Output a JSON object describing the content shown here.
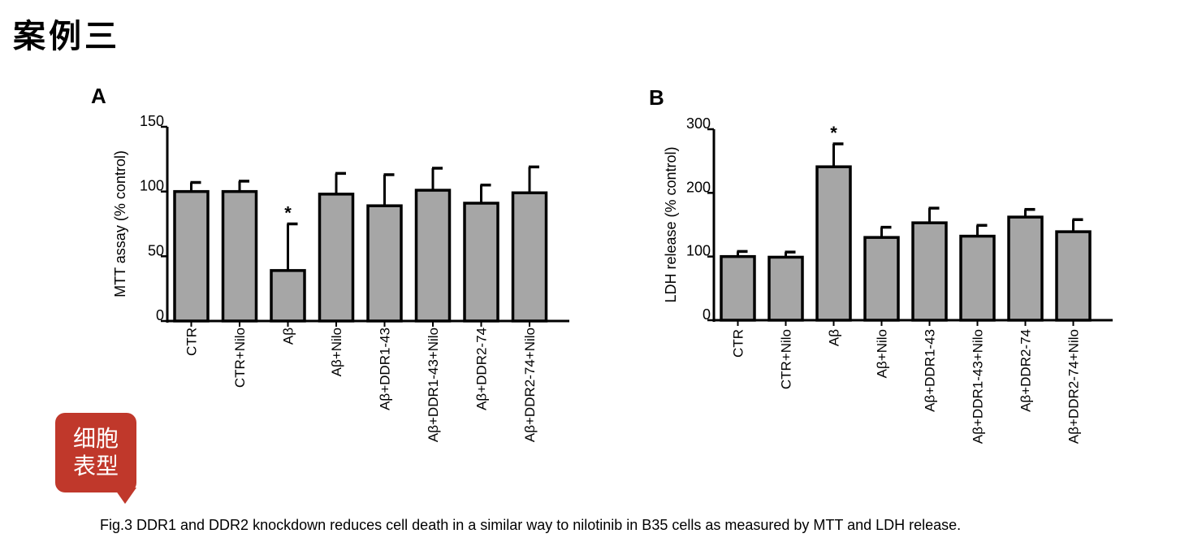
{
  "header": {
    "title": "案例三"
  },
  "badge": {
    "label": "细胞表型"
  },
  "caption": "Fig.3 DDR1 and DDR2 knockdown reduces cell death in a similar way to nilotinib in B35 cells as measured by MTT and LDH release.",
  "chart_data": [
    {
      "panel": "A",
      "type": "bar",
      "ylabel": "MTT assay (% control)",
      "ylim": [
        0,
        150
      ],
      "yticks": [
        0,
        50,
        100,
        150
      ],
      "categories": [
        "CTR",
        "CTR+Nilo",
        "Aβ",
        "Aβ+Nilo",
        "Aβ+DDR1-43",
        "Aβ+DDR1-43+Nilo",
        "Aβ+DDR2-74",
        "Aβ+DDR2-74+Nilo"
      ],
      "values": [
        100,
        100,
        39,
        98,
        89,
        101,
        91,
        99
      ],
      "errors": [
        7,
        8,
        36,
        16,
        24,
        17,
        14,
        20
      ],
      "annotations": [
        {
          "category": "Aβ",
          "text": "*"
        }
      ],
      "bar_color": "#a6a6a6"
    },
    {
      "panel": "B",
      "type": "bar",
      "ylabel": "LDH release (% control)",
      "ylim": [
        0,
        300
      ],
      "yticks": [
        0,
        100,
        200,
        300
      ],
      "categories": [
        "CTR",
        "CTR+Nilo",
        "Aβ",
        "Aβ+Nilo",
        "Aβ+DDR1-43",
        "Aβ+DDR1-43+Nilo",
        "Aβ+DDR2-74",
        "Aβ+DDR2-74+Nilo"
      ],
      "values": [
        100,
        99,
        241,
        130,
        153,
        132,
        162,
        139
      ],
      "errors": [
        8,
        8,
        36,
        16,
        23,
        17,
        12,
        19
      ],
      "annotations": [
        {
          "category": "Aβ",
          "text": "*"
        }
      ],
      "bar_color": "#a6a6a6"
    }
  ]
}
